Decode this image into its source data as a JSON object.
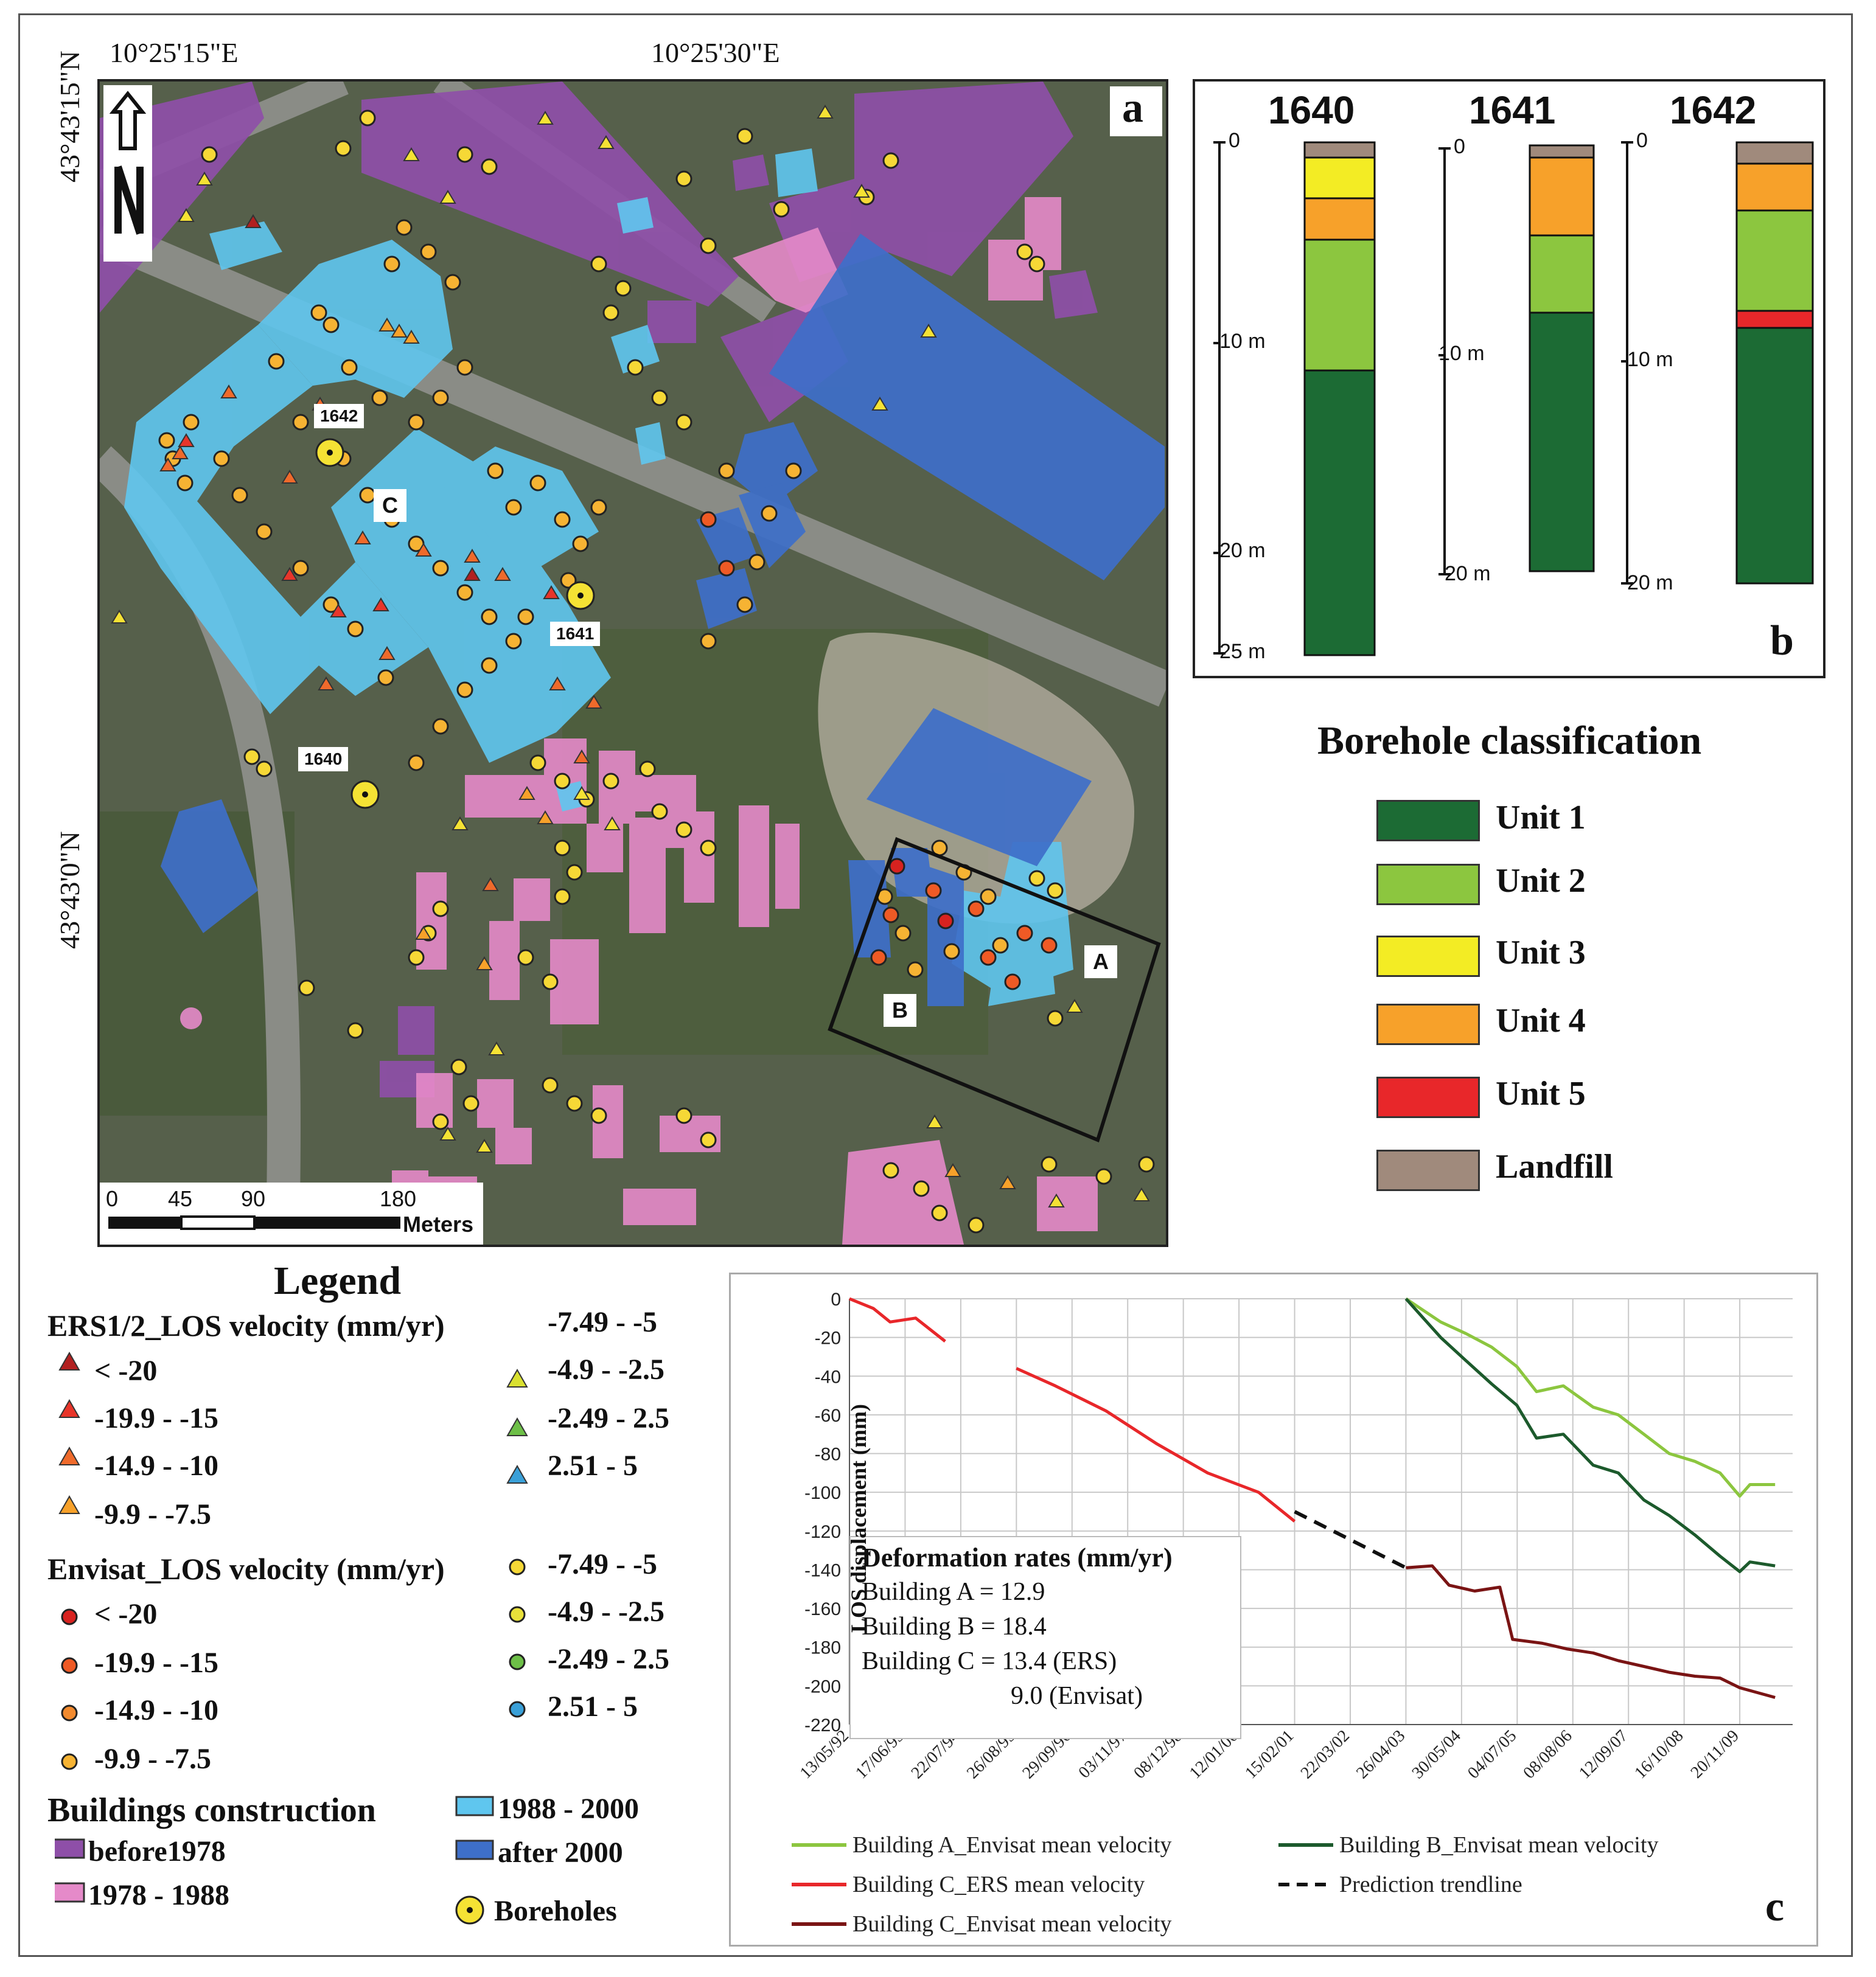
{
  "map": {
    "top_coords": [
      "10°25'15\"E",
      "10°25'30\"E"
    ],
    "left_coords": [
      "43°43'15\"N",
      "43°43'0\"N"
    ],
    "panel_label": "a",
    "north_label": "N",
    "boreholes": [
      "1642",
      "1641",
      "1640"
    ],
    "buildings": [
      "A",
      "B",
      "C"
    ],
    "scale": {
      "ticks": [
        "0",
        "45",
        "90",
        "180"
      ],
      "unit": "Meters"
    }
  },
  "boreholes_panel": {
    "panel_label": "b",
    "columns": [
      {
        "name": "1640",
        "depth_labels": [
          "0",
          "10 m",
          "20 m",
          "25 m"
        ]
      },
      {
        "name": "1641",
        "depth_labels": [
          "0",
          "10 m",
          "20 m"
        ]
      },
      {
        "name": "1642",
        "depth_labels": [
          "0",
          "10 m",
          "20 m"
        ]
      }
    ]
  },
  "classification": {
    "title": "Borehole classification",
    "units": [
      {
        "label": "Unit 1",
        "color": "#1c6b34"
      },
      {
        "label": "Unit 2",
        "color": "#8cc63f"
      },
      {
        "label": "Unit 3",
        "color": "#f3ec24"
      },
      {
        "label": "Unit 4",
        "color": "#f7a12a"
      },
      {
        "label": "Unit 5",
        "color": "#e8272a"
      },
      {
        "label": "Landfill",
        "color": "#a08a7c"
      }
    ]
  },
  "legend": {
    "title": "Legend",
    "ers_title": "ERS1/2_LOS velocity (mm/yr)",
    "ers_items": [
      {
        "label": "< -20",
        "color": "#b22020"
      },
      {
        "label": "-19.9 - -15",
        "color": "#e8352a"
      },
      {
        "label": "-14.9 - -10",
        "color": "#ef6a2b"
      },
      {
        "label": "-9.9 - -7.5",
        "color": "#f7a12a"
      },
      {
        "label": "-7.49 - -5",
        "color": "#f5e234"
      },
      {
        "label": "-4.9 - -2.5",
        "color": "#d9e030"
      },
      {
        "label": "-2.49 - 2.5",
        "color": "#6dbf47"
      },
      {
        "label": "2.51 - 5",
        "color": "#3aa0d8"
      }
    ],
    "envisat_title": "Envisat_LOS velocity (mm/yr)",
    "envisat_items": [
      {
        "label": "< -20",
        "color": "#d8221f"
      },
      {
        "label": "-19.9 - -15",
        "color": "#ef5a25"
      },
      {
        "label": "-14.9 - -10",
        "color": "#f28a2e"
      },
      {
        "label": "-9.9 - -7.5",
        "color": "#f6b333"
      },
      {
        "label": "-7.49 - -5",
        "color": "#f6d836"
      },
      {
        "label": "-4.9 - -2.5",
        "color": "#e9e13a"
      },
      {
        "label": "-2.49 - 2.5",
        "color": "#6dbf47"
      },
      {
        "label": "2.51 - 5",
        "color": "#3aa0d8"
      }
    ],
    "construction_title": "Buildings construction",
    "construction_items": [
      {
        "label": "before1978",
        "color": "#8e4fa8"
      },
      {
        "label": "1978 - 1988",
        "color": "#e58ac9"
      },
      {
        "label": "1988 - 2000",
        "color": "#5fc6ef"
      },
      {
        "label": "after 2000",
        "color": "#3e6fc9"
      }
    ],
    "boreholes_label": "Boreholes"
  },
  "chart_data": {
    "type": "line",
    "panel_label": "c",
    "ylabel": "LOS displacement (mm)",
    "ylim": [
      -220,
      0
    ],
    "yticks": [
      0,
      -20,
      -40,
      -60,
      -80,
      -100,
      -120,
      -140,
      -160,
      -180,
      -200,
      -220
    ],
    "xticks": [
      "13/05/92",
      "17/06/93",
      "22/07/94",
      "26/08/95",
      "29/09/96",
      "03/11/97",
      "08/12/98",
      "12/01/00",
      "15/02/01",
      "22/03/02",
      "26/04/03",
      "30/05/04",
      "04/07/05",
      "08/08/06",
      "12/09/07",
      "16/10/08",
      "20/11/09"
    ],
    "grid": true,
    "series": [
      {
        "name": "Building A_Envisat mean velocity",
        "color": "#8cc63f",
        "dash": false,
        "points": [
          [
            "26/04/03",
            0
          ],
          [
            "01/01/04",
            -12
          ],
          [
            "01/07/04",
            -18
          ],
          [
            "01/01/05",
            -25
          ],
          [
            "01/07/05",
            -35
          ],
          [
            "20/11/05",
            -48
          ],
          [
            "01/06/06",
            -45
          ],
          [
            "01/01/07",
            -56
          ],
          [
            "01/07/07",
            -60
          ],
          [
            "01/01/08",
            -70
          ],
          [
            "01/07/08",
            -80
          ],
          [
            "01/01/09",
            -84
          ],
          [
            "01/07/09",
            -90
          ],
          [
            "20/11/09",
            -102
          ],
          [
            "01/02/10",
            -96
          ],
          [
            "01/08/10",
            -96
          ]
        ]
      },
      {
        "name": "Building B_Envisat mean velocity",
        "color": "#1c5a2c",
        "dash": false,
        "points": [
          [
            "26/04/03",
            0
          ],
          [
            "01/01/04",
            -20
          ],
          [
            "01/07/04",
            -32
          ],
          [
            "01/01/05",
            -44
          ],
          [
            "01/07/05",
            -55
          ],
          [
            "20/11/05",
            -72
          ],
          [
            "01/06/06",
            -70
          ],
          [
            "01/01/07",
            -86
          ],
          [
            "01/07/07",
            -90
          ],
          [
            "01/01/08",
            -104
          ],
          [
            "01/07/08",
            -112
          ],
          [
            "01/01/09",
            -122
          ],
          [
            "01/07/09",
            -133
          ],
          [
            "20/11/09",
            -141
          ],
          [
            "01/02/10",
            -136
          ],
          [
            "01/08/10",
            -138
          ]
        ]
      },
      {
        "name": "Building C_ERS mean velocity",
        "color": "#e8272a",
        "dash": false,
        "points": [
          [
            "13/05/92",
            0
          ],
          [
            "01/11/92",
            -5
          ],
          [
            "01/03/93",
            -12
          ],
          [
            "01/09/93",
            -10
          ],
          [
            "01/04/94",
            -22
          ],
          [
            "null",
            null
          ],
          [
            "26/08/95",
            -36
          ],
          [
            "01/06/96",
            -45
          ],
          [
            "01/06/97",
            -58
          ],
          [
            "01/06/98",
            -75
          ],
          [
            "01/06/99",
            -90
          ],
          [
            "01/06/00",
            -100
          ],
          [
            "15/02/01",
            -115
          ]
        ]
      },
      {
        "name": "Prediction trendline",
        "color": "#111111",
        "dash": true,
        "points": [
          [
            "15/02/01",
            -110
          ],
          [
            "26/04/03",
            -139
          ]
        ]
      },
      {
        "name": "Building C_Envisat mean velocity",
        "color": "#7a1414",
        "dash": false,
        "points": [
          [
            "26/04/03",
            -139
          ],
          [
            "01/11/03",
            -138
          ],
          [
            "01/03/04",
            -148
          ],
          [
            "01/09/04",
            -151
          ],
          [
            "01/03/05",
            -149
          ],
          [
            "01/06/05",
            -176
          ],
          [
            "01/01/06",
            -178
          ],
          [
            "01/07/06",
            -181
          ],
          [
            "01/01/07",
            -183
          ],
          [
            "01/07/07",
            -187
          ],
          [
            "01/01/08",
            -190
          ],
          [
            "01/07/08",
            -193
          ],
          [
            "01/01/09",
            -195
          ],
          [
            "01/07/09",
            -196
          ],
          [
            "20/11/09",
            -201
          ],
          [
            "01/08/10",
            -206
          ]
        ]
      }
    ],
    "annotation": {
      "title": "Deformation rates (mm/yr)",
      "lines": [
        "Building A = 12.9",
        "Building B = 18.4",
        "Building C = 13.4 (ERS)",
        "9.0 (Envisat)"
      ]
    }
  }
}
